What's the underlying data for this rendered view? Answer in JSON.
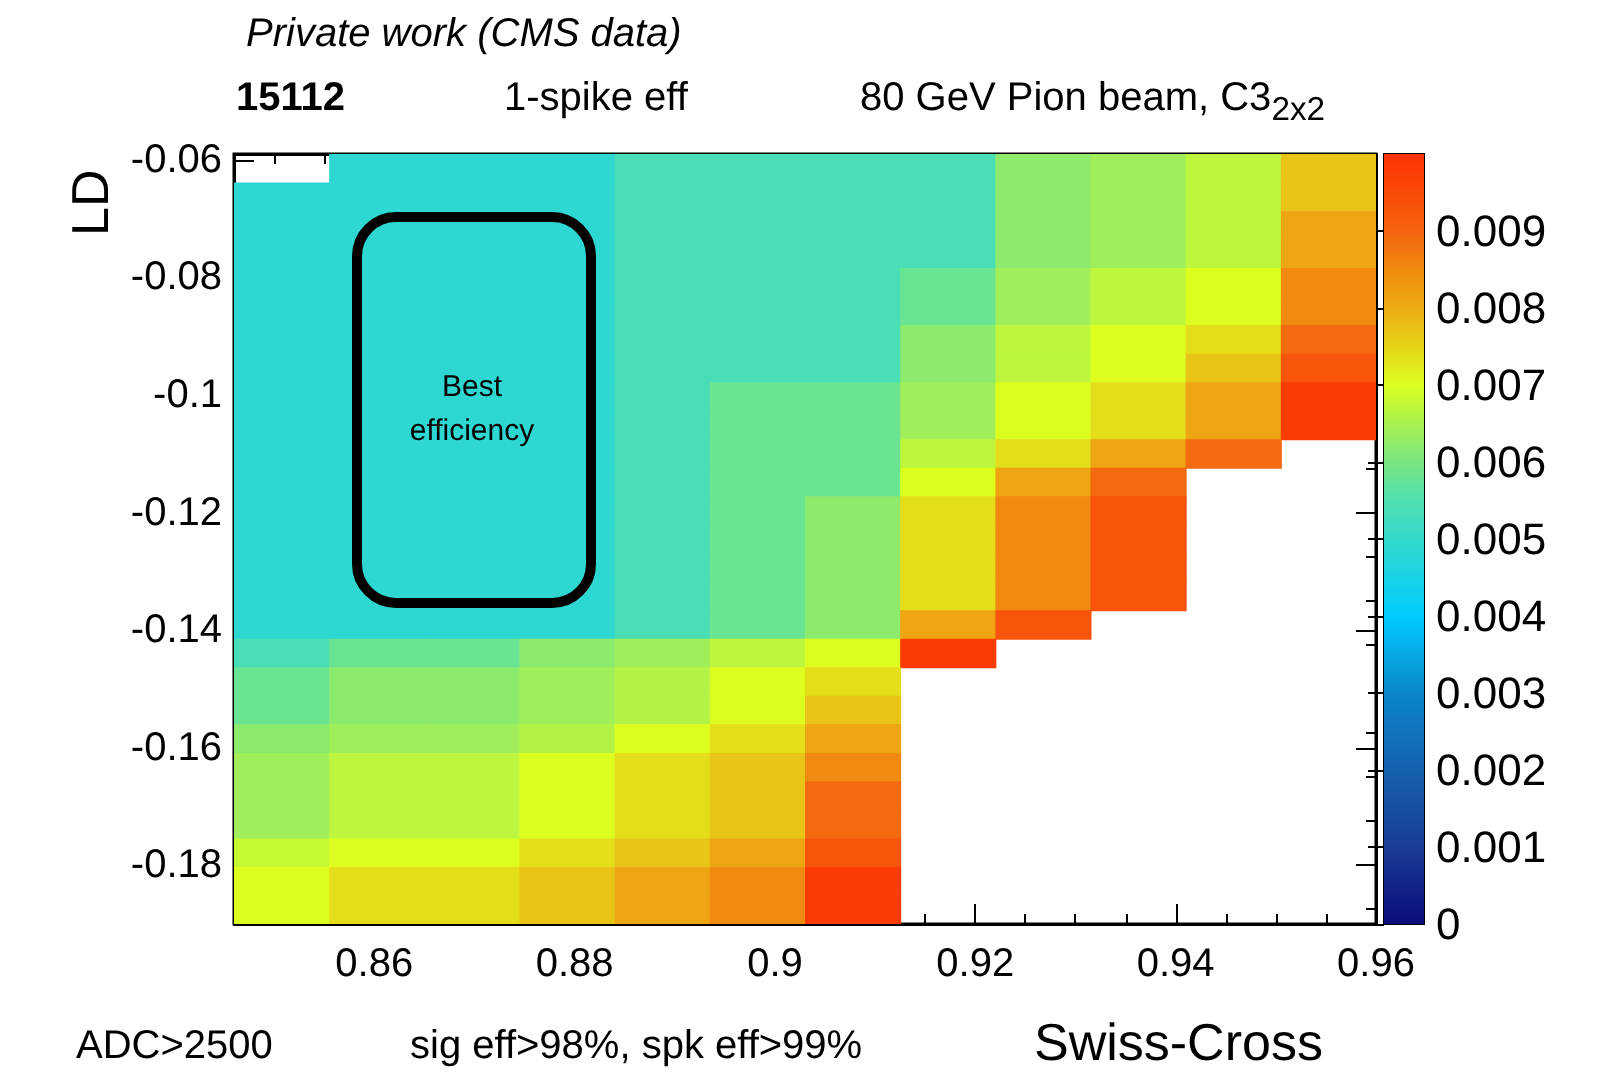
{
  "chart_data": {
    "type": "heatmap",
    "title": "Private work (CMS data)",
    "xlabel": "Swiss-Cross",
    "ylabel": "LD",
    "annotations": [
      "15112",
      "1-spike eff",
      "80 GeV Pion beam, C3$_{2x2}$",
      "Best efficiency",
      "ADC>2500",
      "sig eff>98%, spk eff>99%"
    ],
    "xlim": [
      0.846,
      0.96
    ],
    "xticks": [
      0.86,
      0.88,
      0.9,
      0.92,
      0.94,
      0.96
    ],
    "ylim": [
      -0.19,
      -0.059
    ],
    "yticks": [
      -0.18,
      -0.16,
      -0.14,
      -0.12,
      -0.1,
      -0.08,
      -0.06
    ],
    "clim": [
      0,
      0.01
    ],
    "cticks": [
      0,
      0.001,
      0.002,
      0.003,
      0.004,
      0.005,
      0.006,
      0.007,
      0.008,
      0.009
    ],
    "grid": false,
    "cells": [
      [
        null,
        0.0049,
        0.0049,
        0.0049,
        0.0054,
        0.0054,
        0.0054,
        0.0054,
        0.0062,
        0.0064,
        0.0067,
        0.0077
      ],
      [
        0.0049,
        0.0049,
        0.0049,
        0.0049,
        0.0054,
        0.0054,
        0.0054,
        0.0054,
        0.0062,
        0.0064,
        0.0067,
        0.0077
      ],
      [
        0.0049,
        0.0049,
        0.0049,
        0.0049,
        0.0054,
        0.0054,
        0.0054,
        0.0054,
        0.0062,
        0.0064,
        0.0067,
        0.0081
      ],
      [
        0.0049,
        0.0049,
        0.0049,
        0.0049,
        0.0054,
        0.0054,
        0.0054,
        0.0054,
        0.0062,
        0.0064,
        0.0067,
        0.0081
      ],
      [
        0.0049,
        0.0049,
        0.0049,
        0.0049,
        0.0054,
        0.0054,
        0.0054,
        0.0058,
        0.0064,
        0.0067,
        0.007,
        0.0085
      ],
      [
        0.0049,
        0.0049,
        0.0049,
        0.0049,
        0.0054,
        0.0054,
        0.0054,
        0.0058,
        0.0064,
        0.0067,
        0.007,
        0.0085
      ],
      [
        0.0049,
        0.0049,
        0.0049,
        0.0049,
        0.0054,
        0.0054,
        0.0054,
        0.0062,
        0.0067,
        0.007,
        0.0074,
        0.0089
      ],
      [
        0.0049,
        0.0049,
        0.0049,
        0.0049,
        0.0054,
        0.0054,
        0.0054,
        0.0062,
        0.0067,
        0.007,
        0.0077,
        0.0093
      ],
      [
        0.0049,
        0.0049,
        0.0049,
        0.0049,
        0.0054,
        0.0058,
        0.0058,
        0.0064,
        0.007,
        0.0074,
        0.0081,
        0.0098
      ],
      [
        0.0049,
        0.0049,
        0.0049,
        0.0049,
        0.0054,
        0.0058,
        0.0058,
        0.0064,
        0.007,
        0.0074,
        0.0081,
        0.0098
      ],
      [
        0.0049,
        0.0049,
        0.0049,
        0.0049,
        0.0054,
        0.0058,
        0.0058,
        0.0067,
        0.0074,
        0.0081,
        0.0089,
        null
      ],
      [
        0.0049,
        0.0049,
        0.0049,
        0.0049,
        0.0054,
        0.0058,
        0.0058,
        0.007,
        0.0081,
        0.0089,
        null,
        null
      ],
      [
        0.0049,
        0.0049,
        0.0049,
        0.0049,
        0.0054,
        0.0058,
        0.0062,
        0.0074,
        0.0085,
        0.0093,
        null,
        null
      ],
      [
        0.0049,
        0.0049,
        0.0049,
        0.0049,
        0.0054,
        0.0058,
        0.0062,
        0.0074,
        0.0085,
        0.0093,
        null,
        null
      ],
      [
        0.0049,
        0.0049,
        0.0049,
        0.0049,
        0.0054,
        0.0058,
        0.0062,
        0.0074,
        0.0085,
        0.0093,
        null,
        null
      ],
      [
        0.0049,
        0.0049,
        0.0049,
        0.0049,
        0.0054,
        0.0058,
        0.0062,
        0.0074,
        0.0085,
        0.0093,
        null,
        null
      ],
      [
        0.0049,
        0.0049,
        0.0049,
        0.0049,
        0.0054,
        0.0058,
        0.0062,
        0.0081,
        0.0093,
        null,
        null,
        null
      ],
      [
        0.0054,
        0.0058,
        0.0058,
        0.0062,
        0.0064,
        0.0067,
        0.007,
        0.0098,
        null,
        null,
        null,
        null
      ],
      [
        0.0058,
        0.0062,
        0.0062,
        0.0064,
        0.0066,
        0.007,
        0.0074,
        null,
        null,
        null,
        null,
        null
      ],
      [
        0.0058,
        0.0062,
        0.0062,
        0.0064,
        0.0066,
        0.007,
        0.0077,
        null,
        null,
        null,
        null,
        null
      ],
      [
        0.0062,
        0.0064,
        0.0064,
        0.0066,
        0.007,
        0.0074,
        0.0081,
        null,
        null,
        null,
        null,
        null
      ],
      [
        0.0064,
        0.0067,
        0.0067,
        0.007,
        0.0074,
        0.0077,
        0.0085,
        null,
        null,
        null,
        null,
        null
      ],
      [
        0.0064,
        0.0067,
        0.0067,
        0.007,
        0.0074,
        0.0077,
        0.0089,
        null,
        null,
        null,
        null,
        null
      ],
      [
        0.0064,
        0.0067,
        0.0067,
        0.007,
        0.0074,
        0.0077,
        0.0089,
        null,
        null,
        null,
        null,
        null
      ],
      [
        0.0068,
        0.007,
        0.007,
        0.0074,
        0.0077,
        0.0081,
        0.0093,
        null,
        null,
        null,
        null,
        null
      ],
      [
        0.007,
        0.0074,
        0.0074,
        0.0077,
        0.0081,
        0.0085,
        0.0098,
        null,
        null,
        null,
        null,
        null
      ],
      [
        0.007,
        0.0074,
        0.0074,
        0.0077,
        0.0081,
        0.0085,
        0.0098,
        null,
        null,
        null,
        null,
        null
      ]
    ]
  }
}
